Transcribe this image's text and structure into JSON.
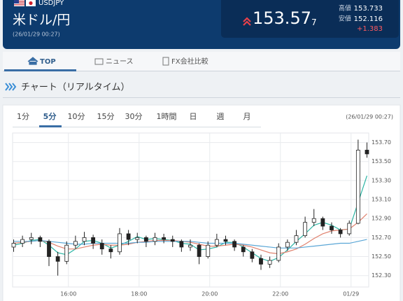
{
  "header": {
    "pair": "USDJPY",
    "name": "米ドル/円",
    "time": "(26/01/29 00:27)",
    "price": "153.57",
    "price_small": "7",
    "high_label": "高値",
    "high": "153.733",
    "low_label": "安値",
    "low": "152.116",
    "change": "+1.383"
  },
  "tabs": [
    "TOP",
    "ニュース",
    "FX会社比較"
  ],
  "section_title": "チャート（リアルタイム）",
  "timeframes": [
    "1分",
    "5分",
    "10分",
    "15分",
    "30分",
    "1時間",
    "日",
    "週",
    "月"
  ],
  "chart_time": "(26/01/29 00:27)",
  "chart_data": {
    "type": "candlestick",
    "x": [
      14.45,
      14.7,
      14.95,
      15.2,
      15.45,
      15.7,
      15.95,
      16.2,
      16.45,
      16.7,
      16.95,
      17.2,
      17.45,
      17.7,
      17.95,
      18.2,
      18.45,
      18.7,
      18.95,
      19.2,
      19.45,
      19.7,
      19.95,
      20.2,
      20.45,
      20.7,
      20.95,
      21.2,
      21.45,
      21.7,
      21.95,
      22.2,
      22.45,
      22.7,
      22.95,
      23.2,
      23.45,
      23.7,
      23.95,
      24.2,
      24.45
    ],
    "open": [
      152.6,
      152.64,
      152.68,
      152.7,
      152.66,
      152.5,
      152.45,
      152.62,
      152.66,
      152.7,
      152.64,
      152.58,
      152.55,
      152.74,
      152.68,
      152.7,
      152.66,
      152.7,
      152.68,
      152.66,
      152.6,
      152.62,
      152.5,
      152.62,
      152.68,
      152.66,
      152.6,
      152.55,
      152.48,
      152.42,
      152.46,
      152.6,
      152.65,
      152.72,
      152.86,
      152.9,
      152.82,
      152.78,
      152.74,
      152.85,
      153.62
    ],
    "high": [
      152.68,
      152.72,
      152.75,
      152.72,
      152.68,
      152.55,
      152.66,
      152.72,
      152.76,
      152.73,
      152.68,
      152.62,
      152.8,
      152.78,
      152.75,
      152.72,
      152.75,
      152.74,
      152.72,
      152.68,
      152.68,
      152.64,
      152.66,
      152.74,
      152.72,
      152.68,
      152.62,
      152.58,
      152.52,
      152.5,
      152.64,
      152.68,
      152.78,
      152.92,
      153.0,
      152.92,
      152.86,
      152.8,
      152.88,
      153.73,
      153.7
    ],
    "low": [
      152.55,
      152.6,
      152.63,
      152.6,
      152.4,
      152.3,
      152.42,
      152.58,
      152.62,
      152.58,
      152.52,
      152.48,
      152.52,
      152.62,
      152.64,
      152.6,
      152.62,
      152.64,
      152.6,
      152.55,
      152.56,
      152.42,
      152.48,
      152.6,
      152.62,
      152.56,
      152.5,
      152.44,
      152.36,
      152.38,
      152.44,
      152.56,
      152.62,
      152.7,
      152.82,
      152.78,
      152.74,
      152.7,
      152.72,
      152.84,
      153.54
    ],
    "close": [
      152.64,
      152.68,
      152.7,
      152.66,
      152.5,
      152.45,
      152.62,
      152.66,
      152.7,
      152.64,
      152.58,
      152.55,
      152.74,
      152.68,
      152.7,
      152.66,
      152.7,
      152.68,
      152.66,
      152.6,
      152.62,
      152.5,
      152.62,
      152.68,
      152.66,
      152.6,
      152.55,
      152.48,
      152.42,
      152.46,
      152.6,
      152.65,
      152.72,
      152.86,
      152.9,
      152.82,
      152.78,
      152.74,
      152.85,
      153.62,
      153.58
    ],
    "up_color": "#ffffff",
    "down_color": "#222222",
    "wick_color": "#222222",
    "lines": [
      {
        "color": "#2bb5a4",
        "values": [
          152.62,
          152.64,
          152.67,
          152.68,
          152.62,
          152.54,
          152.52,
          152.58,
          152.66,
          152.67,
          152.64,
          152.59,
          152.62,
          152.66,
          152.71,
          152.68,
          152.69,
          152.68,
          152.67,
          152.64,
          152.63,
          152.57,
          152.58,
          152.6,
          152.65,
          152.65,
          152.6,
          152.54,
          152.48,
          152.45,
          152.49,
          152.57,
          152.66,
          152.74,
          152.83,
          152.86,
          152.83,
          152.78,
          152.79,
          153.07,
          153.35
        ]
      },
      {
        "color": "#e0826f",
        "values": [
          152.64,
          152.65,
          152.66,
          152.67,
          152.65,
          152.61,
          152.58,
          152.58,
          152.6,
          152.62,
          152.63,
          152.62,
          152.62,
          152.63,
          152.65,
          152.66,
          152.67,
          152.67,
          152.67,
          152.66,
          152.65,
          152.63,
          152.61,
          152.61,
          152.62,
          152.63,
          152.62,
          152.6,
          152.57,
          152.54,
          152.53,
          152.55,
          152.58,
          152.63,
          152.69,
          152.74,
          152.77,
          152.78,
          152.79,
          152.86,
          152.95
        ]
      },
      {
        "color": "#5aa6d6",
        "values": [
          152.66,
          152.66,
          152.66,
          152.67,
          152.66,
          152.65,
          152.64,
          152.63,
          152.63,
          152.64,
          152.64,
          152.64,
          152.64,
          152.64,
          152.65,
          152.65,
          152.66,
          152.66,
          152.66,
          152.66,
          152.66,
          152.65,
          152.64,
          152.64,
          152.64,
          152.64,
          152.63,
          152.62,
          152.61,
          152.6,
          152.59,
          152.59,
          152.59,
          152.6,
          152.61,
          152.62,
          152.63,
          152.64,
          152.64,
          152.66,
          152.68
        ]
      }
    ],
    "xlim": [
      14.42,
      24.5
    ],
    "xticks": [
      {
        "value": 16,
        "label": "16:00"
      },
      {
        "value": 18,
        "label": "18:00"
      },
      {
        "value": 20,
        "label": "20:00"
      },
      {
        "value": 22,
        "label": "22:00"
      },
      {
        "value": 24,
        "label": "01/29"
      }
    ],
    "ylim": [
      152.18,
      153.8
    ],
    "yticks": [
      {
        "value": 152.3,
        "label": "152.30"
      },
      {
        "value": 152.5,
        "label": "152.50"
      },
      {
        "value": 152.7,
        "label": "152.70"
      },
      {
        "value": 152.9,
        "label": "152.90"
      },
      {
        "value": 153.1,
        "label": "153.10"
      },
      {
        "value": 153.3,
        "label": "153.30"
      },
      {
        "value": 153.5,
        "label": "153.50"
      },
      {
        "value": 153.7,
        "label": "153.70"
      }
    ],
    "grid": true
  }
}
